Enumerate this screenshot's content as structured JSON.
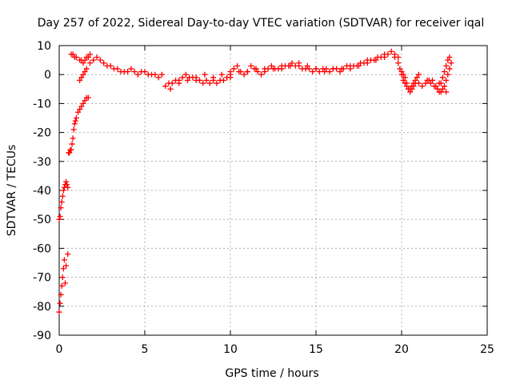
{
  "chart_data": {
    "type": "scatter",
    "title": "Day 257 of 2022, Sidereal Day-to-day VTEC variation (SDTVAR) for receiver iqal",
    "xlabel": "GPS time / hours",
    "ylabel": "SDTVAR / TECUs",
    "xlim": [
      0,
      25
    ],
    "ylim": [
      -90,
      10
    ],
    "xticks": [
      0,
      5,
      10,
      15,
      20,
      25
    ],
    "yticks": [
      10,
      0,
      -10,
      -20,
      -30,
      -40,
      -50,
      -60,
      -70,
      -80,
      -90
    ],
    "grid": true,
    "marker": "+",
    "color": "#ff0000",
    "series": [
      {
        "name": "SDTVAR",
        "x": [
          0.0,
          0.05,
          0.1,
          0.15,
          0.2,
          0.25,
          0.3,
          0.35,
          0.4,
          0.45,
          0.5,
          0.0,
          0.05,
          0.1,
          0.15,
          0.2,
          0.25,
          0.3,
          0.35,
          0.4,
          0.5,
          0.55,
          0.6,
          0.65,
          0.7,
          0.75,
          0.8,
          0.85,
          0.9,
          0.95,
          1.0,
          1.1,
          1.2,
          1.3,
          1.4,
          1.5,
          1.6,
          1.7,
          0.7,
          0.8,
          0.9,
          1.0,
          1.2,
          1.3,
          1.4,
          1.5,
          1.6,
          1.7,
          1.8,
          1.2,
          1.3,
          1.4,
          1.5,
          1.6,
          1.8,
          2.0,
          2.2,
          2.4,
          2.6,
          2.8,
          3.0,
          3.2,
          3.4,
          3.6,
          3.8,
          4.0,
          4.2,
          4.4,
          4.6,
          4.8,
          5.0,
          5.2,
          5.4,
          5.6,
          5.8,
          6.0,
          6.2,
          6.4,
          6.6,
          6.8,
          7.0,
          7.2,
          7.4,
          7.6,
          7.8,
          8.0,
          8.2,
          8.4,
          8.6,
          8.8,
          9.0,
          9.2,
          9.4,
          9.6,
          9.8,
          10.0,
          6.5,
          7.0,
          7.5,
          8.0,
          8.5,
          9.0,
          9.5,
          10.0,
          10.5,
          11.0,
          11.5,
          12.0,
          10.0,
          10.2,
          10.4,
          10.6,
          10.8,
          11.0,
          11.2,
          11.4,
          11.6,
          11.8,
          12.0,
          12.2,
          12.4,
          12.6,
          12.8,
          13.0,
          13.2,
          13.4,
          13.6,
          13.8,
          14.0,
          14.2,
          14.4,
          14.6,
          14.8,
          15.0,
          12.5,
          13.0,
          13.5,
          14.0,
          14.5,
          15.0,
          15.5,
          16.0,
          16.5,
          17.0,
          17.5,
          18.0,
          18.5,
          19.0,
          15.2,
          15.4,
          15.6,
          15.8,
          16.0,
          16.2,
          16.4,
          16.6,
          16.8,
          17.0,
          17.2,
          17.4,
          17.6,
          17.8,
          18.0,
          18.2,
          18.4,
          18.6,
          18.8,
          19.0,
          19.2,
          19.4,
          19.6,
          19.8,
          19.6,
          19.8,
          19.9,
          20.0,
          20.1,
          20.2,
          20.3,
          20.4,
          20.5,
          20.6,
          20.7,
          20.8,
          20.9,
          21.0,
          20.0,
          20.1,
          20.2,
          20.3,
          20.4,
          20.5,
          20.6,
          20.7,
          20.8,
          21.0,
          21.2,
          21.4,
          21.6,
          21.8,
          22.0,
          22.2,
          22.4,
          22.6,
          21.5,
          21.7,
          21.9,
          22.1,
          22.3,
          22.5,
          22.6,
          22.7,
          22.8,
          22.9,
          22.8,
          22.7,
          22.6,
          22.5,
          22.4,
          22.3,
          22.2
        ],
        "y": [
          -50,
          -49,
          -46,
          -44,
          -42,
          -40,
          -39,
          -38,
          -37,
          -38,
          -39,
          -82,
          -79,
          -76,
          -73,
          -70,
          -67,
          -64,
          -72,
          -66,
          -62,
          -27,
          -27,
          -26,
          -26,
          -24,
          -22,
          -19,
          -17,
          -16,
          -15,
          -13,
          -12,
          -11,
          -10,
          -9,
          -8,
          -8,
          7,
          7,
          6,
          6,
          5,
          5,
          4,
          5,
          6,
          6,
          7,
          -2,
          -1,
          0,
          1,
          2,
          4,
          5,
          6,
          5,
          4,
          3,
          3,
          2,
          2,
          1,
          1,
          1,
          2,
          1,
          0,
          1,
          1,
          0,
          0,
          0,
          -1,
          0,
          -4,
          -3,
          -3,
          -2,
          -2,
          -1,
          0,
          -1,
          -1,
          -2,
          -2,
          -3,
          -2,
          -3,
          -2,
          -3,
          -2,
          -2,
          -1,
          -1,
          -5,
          -3,
          -2,
          -1,
          0,
          -1,
          0,
          0,
          1,
          1,
          2,
          2,
          1,
          2,
          3,
          1,
          0,
          1,
          3,
          2,
          1,
          0,
          1,
          2,
          3,
          2,
          2,
          2,
          3,
          3,
          4,
          3,
          3,
          2,
          2,
          2,
          1,
          2,
          2,
          3,
          3,
          4,
          3,
          2,
          1,
          2,
          2,
          3,
          3,
          4,
          5,
          6,
          1,
          2,
          2,
          1,
          2,
          2,
          1,
          2,
          3,
          2,
          3,
          3,
          4,
          4,
          5,
          5,
          5,
          6,
          6,
          7,
          7,
          8,
          7,
          6,
          6,
          4,
          2,
          0,
          -2,
          -3,
          -4,
          -5,
          -5,
          -4,
          -3,
          -2,
          -1,
          0,
          1,
          0,
          -1,
          -3,
          -5,
          -6,
          -5,
          -4,
          -3,
          -3,
          -4,
          -3,
          -2,
          -2,
          -4,
          -3,
          -5,
          -6,
          -2,
          -3,
          -4,
          -5,
          -6,
          -4,
          -2,
          0,
          2,
          4,
          6,
          5,
          3,
          1,
          -1,
          -3,
          -6
        ]
      }
    ]
  }
}
